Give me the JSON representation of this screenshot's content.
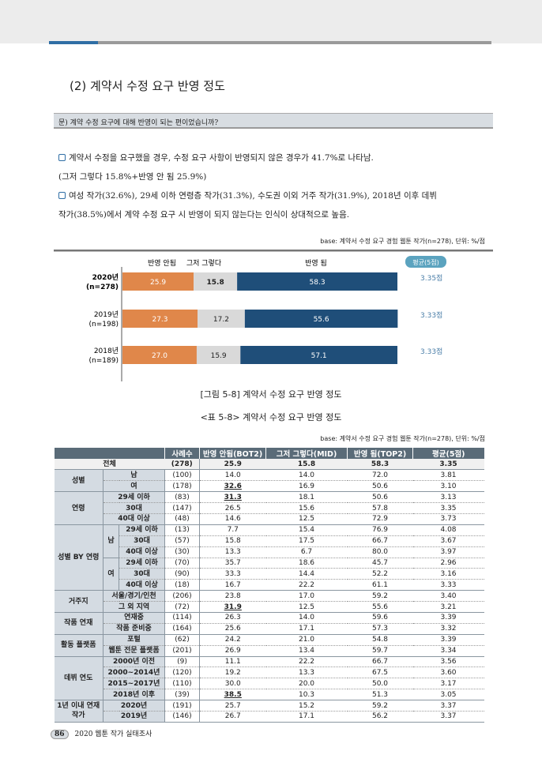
{
  "header": {
    "title": "(2) 계약서 수정 요구 반영 정도",
    "question": "문) 계약 수정 요구에 대해 반영이 되는 편이었습니까?"
  },
  "bullets": [
    {
      "line1": "계약서 수정을 요구했을 경우, 수정 요구 사항이 반영되지 않은 경우가 41.7%로 나타남.",
      "line2": "(그저 그렇다 15.8%+반영 안 됨 25.9%)"
    },
    {
      "line1": "여성 작가(32.6%), 29세 이하 연령층 작가(31.3%), 수도권 이외 거주 작가(31.9%), 2018년 이후 데뷔",
      "line2": "작가(38.5%)에서 계약 수정 요구 시 반영이 되지 않는다는 인식이 상대적으로 높음."
    }
  ],
  "chart_base": "base: 계약서 수정 요구 경험 웹툰 작가(n=278), 단위: %/점",
  "chart_data": {
    "type": "bar",
    "stacked": true,
    "orientation": "horizontal",
    "categories": [
      "2020년 (n=278)",
      "2019년 (n=198)",
      "2018년 (n=189)"
    ],
    "series": [
      {
        "name": "반영 안됨",
        "values": [
          25.9,
          27.3,
          27.0
        ],
        "color": "#e0874a"
      },
      {
        "name": "그저 그렇다",
        "values": [
          15.8,
          17.2,
          15.9
        ],
        "color": "#d9d9d9"
      },
      {
        "name": "반영 됨",
        "values": [
          58.3,
          55.6,
          57.1
        ],
        "color": "#1f4e79"
      }
    ],
    "avg_label": "평균(5점)",
    "averages": [
      "3.35점",
      "3.33점",
      "3.33점"
    ],
    "legend": "top"
  },
  "figure_caption": "[그림 5-8] 계약서 수정 요구 반영 정도",
  "table_caption": "<표 5-8> 계약서 수정 요구 반영 정도",
  "table_base": "base: 계약서 수정 요구 경험 웹툰 작가(n=278), 단위: %/점",
  "table": {
    "headers": [
      "사례수",
      "반영 안됨(BOT2)",
      "그저 그렇다(MID)",
      "반영 됨(TOP2)",
      "평균(5점)"
    ],
    "total": {
      "label": "전체",
      "n": "(278)",
      "v": [
        "25.9",
        "15.8",
        "58.3",
        "3.35"
      ]
    },
    "groups": [
      {
        "name": "성별",
        "rows": [
          {
            "label": "남",
            "n": "(100)",
            "v": [
              "14.0",
              "14.0",
              "72.0",
              "3.81"
            ]
          },
          {
            "label": "여",
            "n": "(178)",
            "v": [
              "32.6",
              "16.9",
              "50.6",
              "3.10"
            ],
            "u": true
          }
        ]
      },
      {
        "name": "연령",
        "rows": [
          {
            "label": "29세 이하",
            "n": "(83)",
            "v": [
              "31.3",
              "18.1",
              "50.6",
              "3.13"
            ],
            "u": true
          },
          {
            "label": "30대",
            "n": "(147)",
            "v": [
              "26.5",
              "15.6",
              "57.8",
              "3.35"
            ]
          },
          {
            "label": "40대 이상",
            "n": "(48)",
            "v": [
              "14.6",
              "12.5",
              "72.9",
              "3.73"
            ]
          }
        ]
      },
      {
        "name": "성별 BY 연령",
        "subs": [
          {
            "name": "남",
            "rows": [
              {
                "label": "29세 이하",
                "n": "(13)",
                "v": [
                  "7.7",
                  "15.4",
                  "76.9",
                  "4.08"
                ]
              },
              {
                "label": "30대",
                "n": "(57)",
                "v": [
                  "15.8",
                  "17.5",
                  "66.7",
                  "3.67"
                ]
              },
              {
                "label": "40대 이상",
                "n": "(30)",
                "v": [
                  "13.3",
                  "6.7",
                  "80.0",
                  "3.97"
                ]
              }
            ]
          },
          {
            "name": "여",
            "rows": [
              {
                "label": "29세 이하",
                "n": "(70)",
                "v": [
                  "35.7",
                  "18.6",
                  "45.7",
                  "2.96"
                ]
              },
              {
                "label": "30대",
                "n": "(90)",
                "v": [
                  "33.3",
                  "14.4",
                  "52.2",
                  "3.16"
                ]
              },
              {
                "label": "40대 이상",
                "n": "(18)",
                "v": [
                  "16.7",
                  "22.2",
                  "61.1",
                  "3.33"
                ]
              }
            ]
          }
        ]
      },
      {
        "name": "거주지",
        "rows": [
          {
            "label": "서울/경기/인천",
            "n": "(206)",
            "v": [
              "23.8",
              "17.0",
              "59.2",
              "3.40"
            ]
          },
          {
            "label": "그 외 지역",
            "n": "(72)",
            "v": [
              "31.9",
              "12.5",
              "55.6",
              "3.21"
            ],
            "u": true
          }
        ]
      },
      {
        "name": "작품 연재",
        "rows": [
          {
            "label": "연재중",
            "n": "(114)",
            "v": [
              "26.3",
              "14.0",
              "59.6",
              "3.39"
            ]
          },
          {
            "label": "작품 준비중",
            "n": "(164)",
            "v": [
              "25.6",
              "17.1",
              "57.3",
              "3.32"
            ]
          }
        ]
      },
      {
        "name": "활동 플랫폼",
        "rows": [
          {
            "label": "포털",
            "n": "(62)",
            "v": [
              "24.2",
              "21.0",
              "54.8",
              "3.39"
            ]
          },
          {
            "label": "웹툰 전문 플랫폼",
            "n": "(201)",
            "v": [
              "26.9",
              "13.4",
              "59.7",
              "3.34"
            ]
          }
        ]
      },
      {
        "name": "데뷔 연도",
        "rows": [
          {
            "label": "2000년 이전",
            "n": "(9)",
            "v": [
              "11.1",
              "22.2",
              "66.7",
              "3.56"
            ]
          },
          {
            "label": "2000~2014년",
            "n": "(120)",
            "v": [
              "19.2",
              "13.3",
              "67.5",
              "3.60"
            ]
          },
          {
            "label": "2015~2017년",
            "n": "(110)",
            "v": [
              "30.0",
              "20.0",
              "50.0",
              "3.17"
            ]
          },
          {
            "label": "2018년 이후",
            "n": "(39)",
            "v": [
              "38.5",
              "10.3",
              "51.3",
              "3.05"
            ],
            "u": true
          }
        ]
      },
      {
        "name": "1년 이내 연재 작가",
        "rows": [
          {
            "label": "2020년",
            "n": "(191)",
            "v": [
              "25.7",
              "15.2",
              "59.2",
              "3.37"
            ]
          },
          {
            "label": "2019년",
            "n": "(146)",
            "v": [
              "26.7",
              "17.1",
              "56.2",
              "3.37"
            ]
          }
        ]
      }
    ]
  },
  "footer": {
    "page": "86",
    "text": "2020 웹툰 작가 실태조사"
  }
}
